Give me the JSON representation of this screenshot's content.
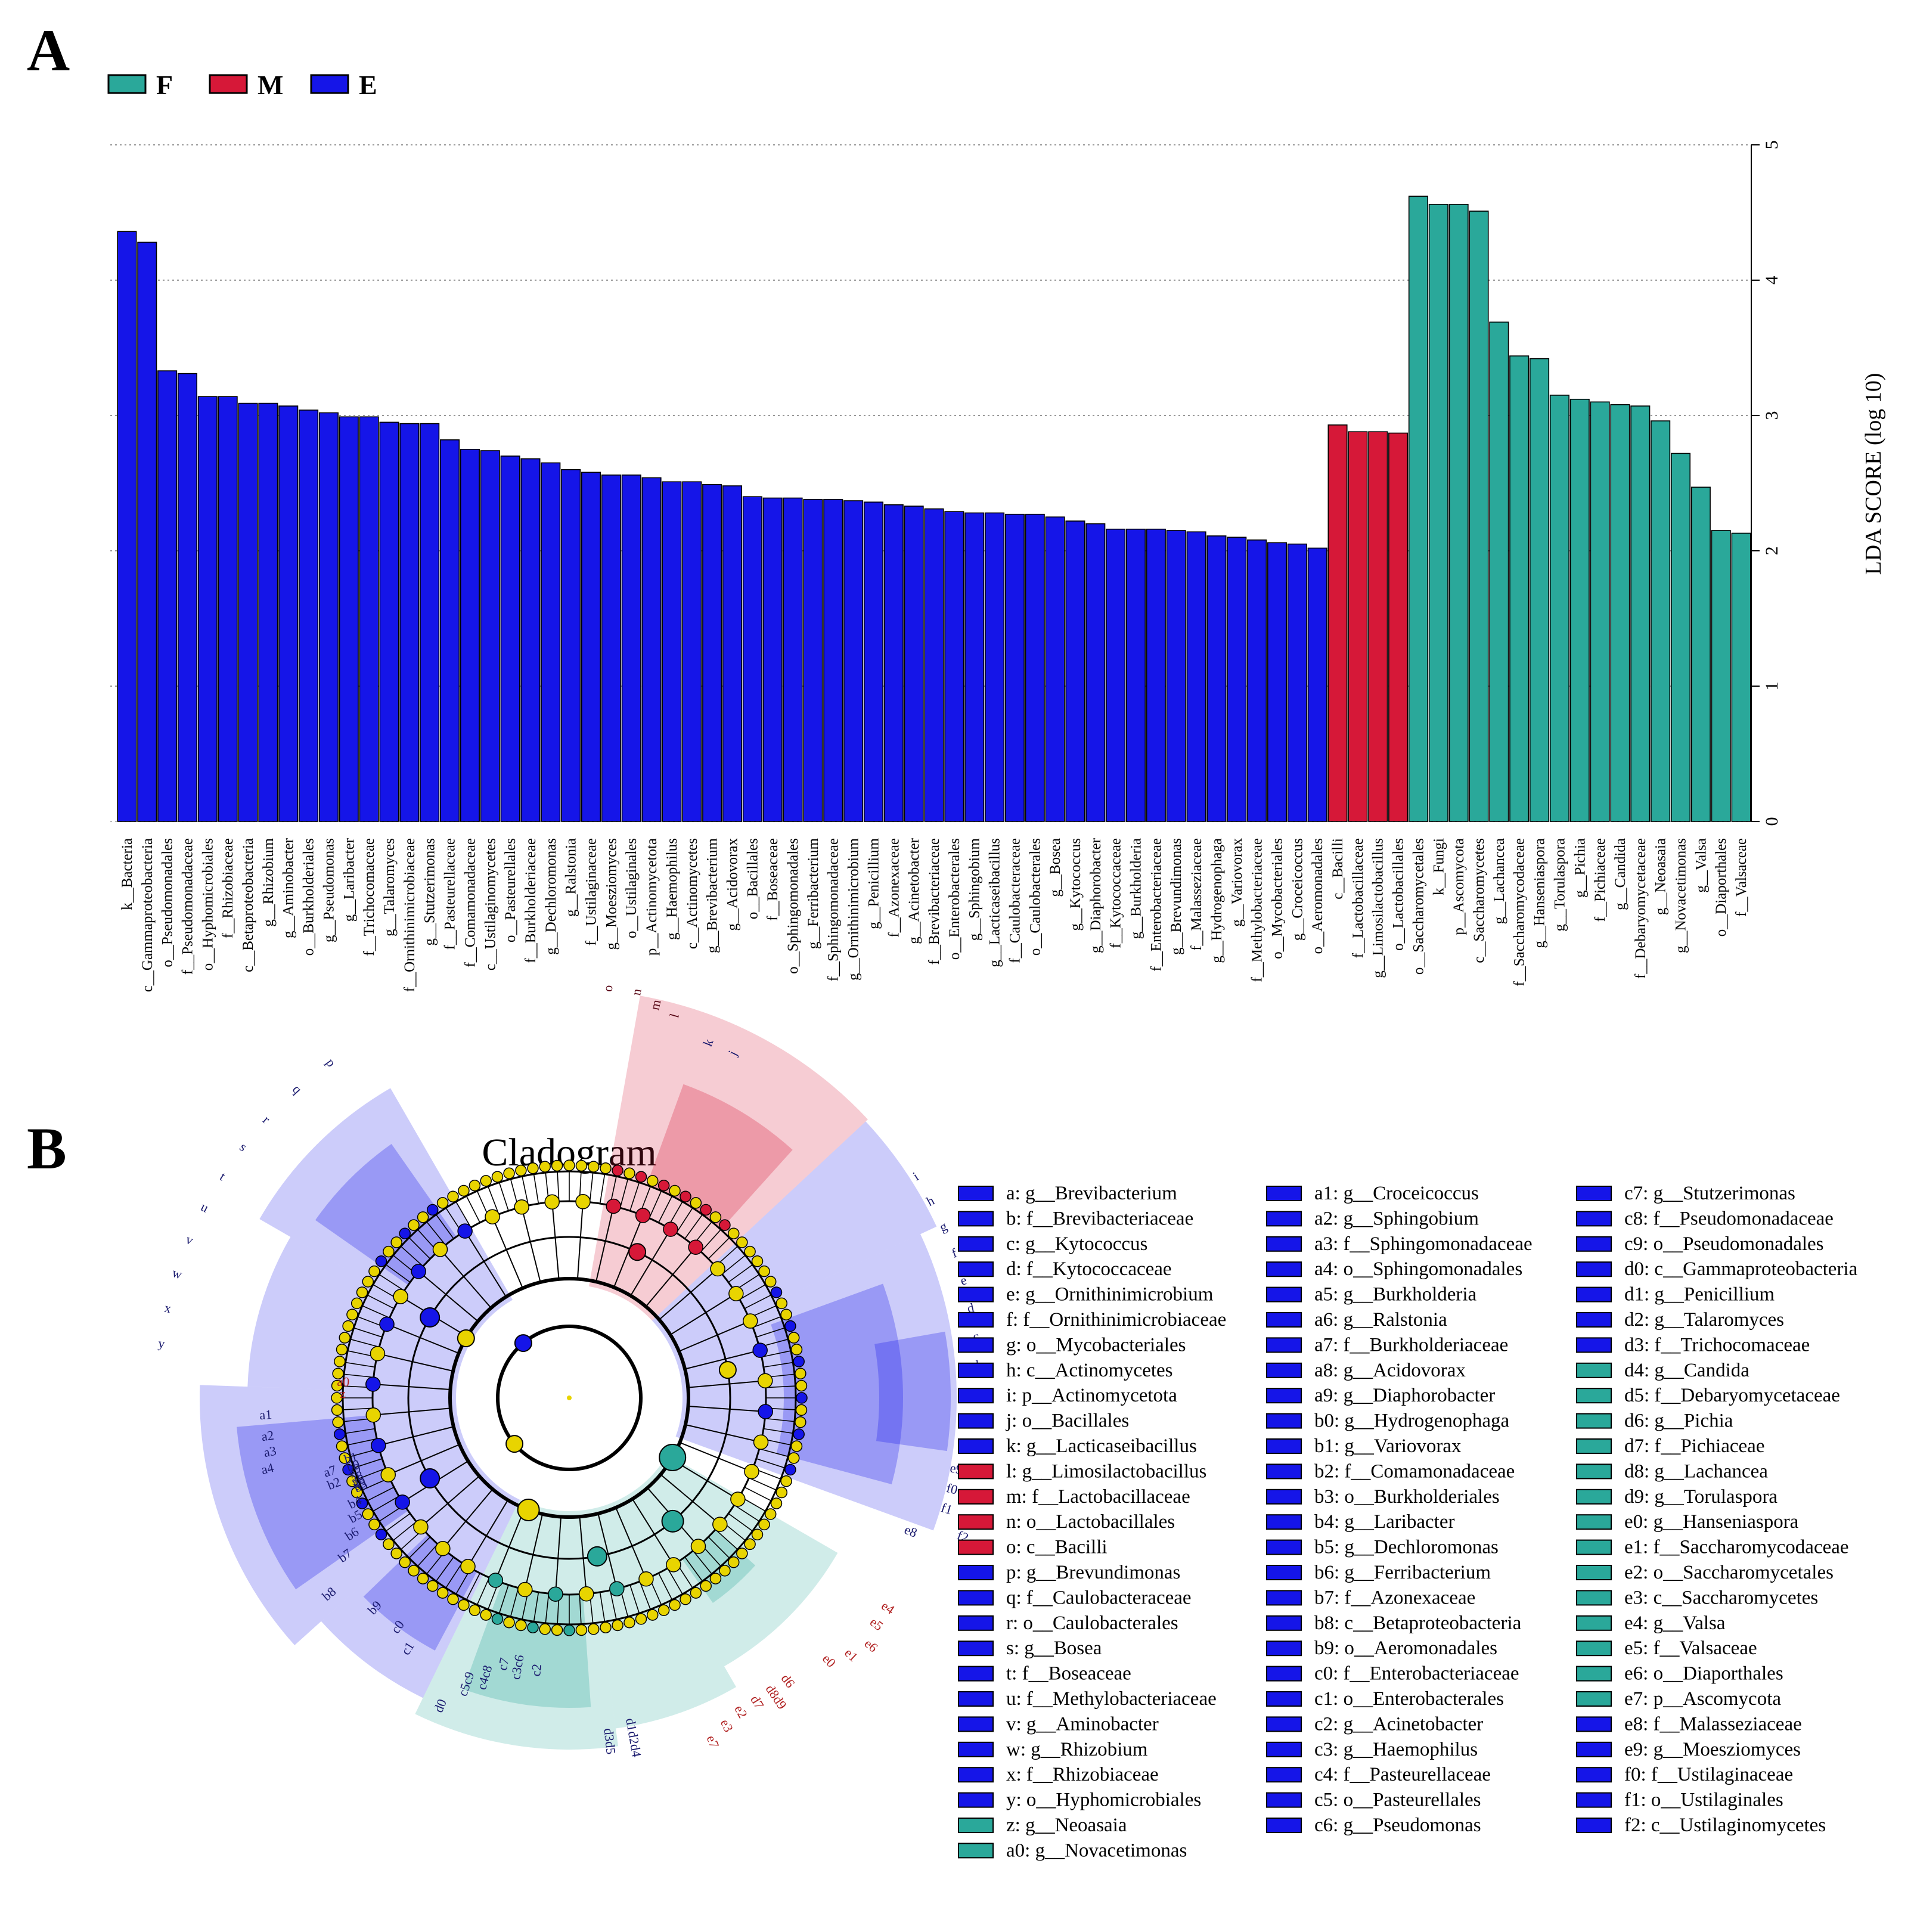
{
  "panel_a_label": "A",
  "panel_b_label": "B",
  "colors": {
    "F": "#2aa89a",
    "M": "#d61838",
    "E": "#1515e8",
    "node": "#e8d400"
  },
  "chart_data": {
    "type": "bar",
    "ylabel": "LDA SCORE (log 10)",
    "ylim": [
      0,
      5
    ],
    "yticks": [
      0,
      1,
      2,
      3,
      4,
      5
    ],
    "grid": true,
    "legend": [
      {
        "key": "F",
        "label": "F"
      },
      {
        "key": "M",
        "label": "M"
      },
      {
        "key": "E",
        "label": "E"
      }
    ],
    "bars": [
      {
        "label": "k__Bacteria",
        "value": 4.36,
        "group": "E"
      },
      {
        "label": "c__Gammaproteobacteria",
        "value": 4.28,
        "group": "E"
      },
      {
        "label": "o__Pseudomonadales",
        "value": 3.33,
        "group": "E"
      },
      {
        "label": "f__Pseudomonadaceae",
        "value": 3.31,
        "group": "E"
      },
      {
        "label": "o__Hyphomicrobiales",
        "value": 3.14,
        "group": "E"
      },
      {
        "label": "f__Rhizobiaceae",
        "value": 3.14,
        "group": "E"
      },
      {
        "label": "c__Betaproteobacteria",
        "value": 3.09,
        "group": "E"
      },
      {
        "label": "g__Rhizobium",
        "value": 3.09,
        "group": "E"
      },
      {
        "label": "g__Aminobacter",
        "value": 3.07,
        "group": "E"
      },
      {
        "label": "o__Burkholderiales",
        "value": 3.04,
        "group": "E"
      },
      {
        "label": "g__Pseudomonas",
        "value": 3.02,
        "group": "E"
      },
      {
        "label": "g__Laribacter",
        "value": 2.99,
        "group": "E"
      },
      {
        "label": "f__Trichocomaceae",
        "value": 2.99,
        "group": "E"
      },
      {
        "label": "g__Talaromyces",
        "value": 2.95,
        "group": "E"
      },
      {
        "label": "f__Ornithinimicrobiaceae",
        "value": 2.94,
        "group": "E"
      },
      {
        "label": "g__Stutzerimonas",
        "value": 2.94,
        "group": "E"
      },
      {
        "label": "f__Pasteurellaceae",
        "value": 2.82,
        "group": "E"
      },
      {
        "label": "f__Comamonadaceae",
        "value": 2.75,
        "group": "E"
      },
      {
        "label": "c__Ustilaginomycetes",
        "value": 2.74,
        "group": "E"
      },
      {
        "label": "o__Pasteurellales",
        "value": 2.7,
        "group": "E"
      },
      {
        "label": "f__Burkholderiaceae",
        "value": 2.68,
        "group": "E"
      },
      {
        "label": "g__Dechloromonas",
        "value": 2.65,
        "group": "E"
      },
      {
        "label": "g__Ralstonia",
        "value": 2.6,
        "group": "E"
      },
      {
        "label": "f__Ustilaginaceae",
        "value": 2.58,
        "group": "E"
      },
      {
        "label": "g__Moesziomyces",
        "value": 2.56,
        "group": "E"
      },
      {
        "label": "o__Ustilaginales",
        "value": 2.56,
        "group": "E"
      },
      {
        "label": "p__Actinomycetota",
        "value": 2.54,
        "group": "E"
      },
      {
        "label": "g__Haemophilus",
        "value": 2.51,
        "group": "E"
      },
      {
        "label": "c__Actinomycetes",
        "value": 2.51,
        "group": "E"
      },
      {
        "label": "g__Brevibacterium",
        "value": 2.49,
        "group": "E"
      },
      {
        "label": "g__Acidovorax",
        "value": 2.48,
        "group": "E"
      },
      {
        "label": "o__Bacillales",
        "value": 2.4,
        "group": "E"
      },
      {
        "label": "f__Boseaceae",
        "value": 2.39,
        "group": "E"
      },
      {
        "label": "o__Sphingomonadales",
        "value": 2.39,
        "group": "E"
      },
      {
        "label": "g__Ferribacterium",
        "value": 2.38,
        "group": "E"
      },
      {
        "label": "f__Sphingomonadaceae",
        "value": 2.38,
        "group": "E"
      },
      {
        "label": "g__Ornithinimicrobium",
        "value": 2.37,
        "group": "E"
      },
      {
        "label": "g__Penicillium",
        "value": 2.36,
        "group": "E"
      },
      {
        "label": "f__Azonexaceae",
        "value": 2.34,
        "group": "E"
      },
      {
        "label": "g__Acinetobacter",
        "value": 2.33,
        "group": "E"
      },
      {
        "label": "f__Brevibacteriaceae",
        "value": 2.31,
        "group": "E"
      },
      {
        "label": "o__Enterobacterales",
        "value": 2.29,
        "group": "E"
      },
      {
        "label": "g__Sphingobium",
        "value": 2.28,
        "group": "E"
      },
      {
        "label": "g__Lacticaseibacillus",
        "value": 2.28,
        "group": "E"
      },
      {
        "label": "f__Caulobacteraceae",
        "value": 2.27,
        "group": "E"
      },
      {
        "label": "o__Caulobacterales",
        "value": 2.27,
        "group": "E"
      },
      {
        "label": "g__Bosea",
        "value": 2.25,
        "group": "E"
      },
      {
        "label": "g__Kytococcus",
        "value": 2.22,
        "group": "E"
      },
      {
        "label": "g__Diaphorobacter",
        "value": 2.2,
        "group": "E"
      },
      {
        "label": "f__Kytococcaceae",
        "value": 2.16,
        "group": "E"
      },
      {
        "label": "g__Burkholderia",
        "value": 2.16,
        "group": "E"
      },
      {
        "label": "f__Enterobacteriaceae",
        "value": 2.16,
        "group": "E"
      },
      {
        "label": "g__Brevundimonas",
        "value": 2.15,
        "group": "E"
      },
      {
        "label": "f__Malasseziaceae",
        "value": 2.14,
        "group": "E"
      },
      {
        "label": "g__Hydrogenophaga",
        "value": 2.11,
        "group": "E"
      },
      {
        "label": "g__Variovorax",
        "value": 2.1,
        "group": "E"
      },
      {
        "label": "f__Methylobacteriaceae",
        "value": 2.08,
        "group": "E"
      },
      {
        "label": "o__Mycobacteriales",
        "value": 2.06,
        "group": "E"
      },
      {
        "label": "g__Croceicoccus",
        "value": 2.05,
        "group": "E"
      },
      {
        "label": "o__Aeromonadales",
        "value": 2.02,
        "group": "E"
      },
      {
        "label": "c__Bacilli",
        "value": 2.93,
        "group": "M"
      },
      {
        "label": "f__Lactobacillaceae",
        "value": 2.88,
        "group": "M"
      },
      {
        "label": "g__Limosilactobacillus",
        "value": 2.88,
        "group": "M"
      },
      {
        "label": "o__Lactobacillales",
        "value": 2.87,
        "group": "M"
      },
      {
        "label": "o__Saccharomycetales",
        "value": 4.62,
        "group": "F"
      },
      {
        "label": "k__Fungi",
        "value": 4.56,
        "group": "F"
      },
      {
        "label": "p__Ascomycota",
        "value": 4.56,
        "group": "F"
      },
      {
        "label": "c__Saccharomycetes",
        "value": 4.51,
        "group": "F"
      },
      {
        "label": "g__Lachancea",
        "value": 3.69,
        "group": "F"
      },
      {
        "label": "f__Saccharomycodaceae",
        "value": 3.44,
        "group": "F"
      },
      {
        "label": "g__Hanseniaspora",
        "value": 3.42,
        "group": "F"
      },
      {
        "label": "g__Torulaspora",
        "value": 3.15,
        "group": "F"
      },
      {
        "label": "g__Pichia",
        "value": 3.12,
        "group": "F"
      },
      {
        "label": "f__Pichiaceae",
        "value": 3.1,
        "group": "F"
      },
      {
        "label": "g__Candida",
        "value": 3.08,
        "group": "F"
      },
      {
        "label": "f__Debaryomycetaceae",
        "value": 3.07,
        "group": "F"
      },
      {
        "label": "g__Neoasaia",
        "value": 2.96,
        "group": "F"
      },
      {
        "label": "g__Novacetimonas",
        "value": 2.72,
        "group": "F"
      },
      {
        "label": "g__Valsa",
        "value": 2.47,
        "group": "F"
      },
      {
        "label": "o__Diaporthales",
        "value": 2.15,
        "group": "F"
      },
      {
        "label": "f__Valsaceae",
        "value": 2.13,
        "group": "F"
      }
    ]
  },
  "cladogram": {
    "title": "Cladogram",
    "legend_columns": [
      [
        {
          "label": "a: g__Brevibacterium",
          "group": "E"
        },
        {
          "label": "b: f__Brevibacteriaceae",
          "group": "E"
        },
        {
          "label": "c: g__Kytococcus",
          "group": "E"
        },
        {
          "label": "d: f__Kytococcaceae",
          "group": "E"
        },
        {
          "label": "e: g__Ornithinimicrobium",
          "group": "E"
        },
        {
          "label": "f: f__Ornithinimicrobiaceae",
          "group": "E"
        },
        {
          "label": "g: o__Mycobacteriales",
          "group": "E"
        },
        {
          "label": "h: c__Actinomycetes",
          "group": "E"
        },
        {
          "label": "i: p__Actinomycetota",
          "group": "E"
        },
        {
          "label": "j: o__Bacillales",
          "group": "E"
        },
        {
          "label": "k: g__Lacticaseibacillus",
          "group": "E"
        },
        {
          "label": "l: g__Limosilactobacillus",
          "group": "M"
        },
        {
          "label": "m: f__Lactobacillaceae",
          "group": "M"
        },
        {
          "label": "n: o__Lactobacillales",
          "group": "M"
        },
        {
          "label": "o: c__Bacilli",
          "group": "M"
        },
        {
          "label": "p: g__Brevundimonas",
          "group": "E"
        },
        {
          "label": "q: f__Caulobacteraceae",
          "group": "E"
        },
        {
          "label": "r: o__Caulobacterales",
          "group": "E"
        },
        {
          "label": "s: g__Bosea",
          "group": "E"
        },
        {
          "label": "t: f__Boseaceae",
          "group": "E"
        },
        {
          "label": "u: f__Methylobacteriaceae",
          "group": "E"
        },
        {
          "label": "v: g__Aminobacter",
          "group": "E"
        },
        {
          "label": "w: g__Rhizobium",
          "group": "E"
        },
        {
          "label": "x: f__Rhizobiaceae",
          "group": "E"
        },
        {
          "label": "y: o__Hyphomicrobiales",
          "group": "E"
        },
        {
          "label": "z: g__Neoasaia",
          "group": "F"
        },
        {
          "label": "a0: g__Novacetimonas",
          "group": "F"
        }
      ],
      [
        {
          "label": "a1: g__Croceicoccus",
          "group": "E"
        },
        {
          "label": "a2: g__Sphingobium",
          "group": "E"
        },
        {
          "label": "a3: f__Sphingomonadaceae",
          "group": "E"
        },
        {
          "label": "a4: o__Sphingomonadales",
          "group": "E"
        },
        {
          "label": "a5: g__Burkholderia",
          "group": "E"
        },
        {
          "label": "a6: g__Ralstonia",
          "group": "E"
        },
        {
          "label": "a7: f__Burkholderiaceae",
          "group": "E"
        },
        {
          "label": "a8: g__Acidovorax",
          "group": "E"
        },
        {
          "label": "a9: g__Diaphorobacter",
          "group": "E"
        },
        {
          "label": "b0: g__Hydrogenophaga",
          "group": "E"
        },
        {
          "label": "b1: g__Variovorax",
          "group": "E"
        },
        {
          "label": "b2: f__Comamonadaceae",
          "group": "E"
        },
        {
          "label": "b3: o__Burkholderiales",
          "group": "E"
        },
        {
          "label": "b4: g__Laribacter",
          "group": "E"
        },
        {
          "label": "b5: g__Dechloromonas",
          "group": "E"
        },
        {
          "label": "b6: g__Ferribacterium",
          "group": "E"
        },
        {
          "label": "b7: f__Azonexaceae",
          "group": "E"
        },
        {
          "label": "b8: c__Betaproteobacteria",
          "group": "E"
        },
        {
          "label": "b9: o__Aeromonadales",
          "group": "E"
        },
        {
          "label": "c0: f__Enterobacteriaceae",
          "group": "E"
        },
        {
          "label": "c1: o__Enterobacterales",
          "group": "E"
        },
        {
          "label": "c2: g__Acinetobacter",
          "group": "E"
        },
        {
          "label": "c3: g__Haemophilus",
          "group": "E"
        },
        {
          "label": "c4: f__Pasteurellaceae",
          "group": "E"
        },
        {
          "label": "c5: o__Pasteurellales",
          "group": "E"
        },
        {
          "label": "c6: g__Pseudomonas",
          "group": "E"
        }
      ],
      [
        {
          "label": "c7: g__Stutzerimonas",
          "group": "E"
        },
        {
          "label": "c8: f__Pseudomonadaceae",
          "group": "E"
        },
        {
          "label": "c9: o__Pseudomonadales",
          "group": "E"
        },
        {
          "label": "d0: c__Gammaproteobacteria",
          "group": "E"
        },
        {
          "label": "d1: g__Penicillium",
          "group": "E"
        },
        {
          "label": "d2: g__Talaromyces",
          "group": "E"
        },
        {
          "label": "d3: f__Trichocomaceae",
          "group": "E"
        },
        {
          "label": "d4: g__Candida",
          "group": "F"
        },
        {
          "label": "d5: f__Debaryomycetaceae",
          "group": "F"
        },
        {
          "label": "d6: g__Pichia",
          "group": "F"
        },
        {
          "label": "d7: f__Pichiaceae",
          "group": "F"
        },
        {
          "label": "d8: g__Lachancea",
          "group": "F"
        },
        {
          "label": "d9: g__Torulaspora",
          "group": "F"
        },
        {
          "label": "e0: g__Hanseniaspora",
          "group": "F"
        },
        {
          "label": "e1: f__Saccharomycodaceae",
          "group": "F"
        },
        {
          "label": "e2: o__Saccharomycetales",
          "group": "F"
        },
        {
          "label": "e3: c__Saccharomycetes",
          "group": "F"
        },
        {
          "label": "e4: g__Valsa",
          "group": "F"
        },
        {
          "label": "e5: f__Valsaceae",
          "group": "F"
        },
        {
          "label": "e6: o__Diaporthales",
          "group": "F"
        },
        {
          "label": "e7: p__Ascomycota",
          "group": "F"
        },
        {
          "label": "e8: f__Malasseziaceae",
          "group": "E"
        },
        {
          "label": "e9: g__Moesziomyces",
          "group": "E"
        },
        {
          "label": "f0: f__Ustilaginaceae",
          "group": "E"
        },
        {
          "label": "f1: o__Ustilaginales",
          "group": "E"
        },
        {
          "label": "f2: c__Ustilaginomycetes",
          "group": "E"
        }
      ]
    ],
    "labels": [
      {
        "t": "o",
        "g": "M"
      },
      {
        "t": "n",
        "g": "M"
      },
      {
        "t": "m",
        "g": "M"
      },
      {
        "t": "l",
        "g": "M"
      },
      {
        "t": "k",
        "g": "E"
      },
      {
        "t": "j",
        "g": "E"
      },
      {
        "t": "i",
        "g": "E"
      },
      {
        "t": "h",
        "g": "E"
      },
      {
        "t": "g",
        "g": "E"
      },
      {
        "t": "f",
        "g": "E"
      },
      {
        "t": "e",
        "g": "E"
      },
      {
        "t": "d",
        "g": "E"
      },
      {
        "t": "c",
        "g": "E"
      },
      {
        "t": "b",
        "g": "E"
      },
      {
        "t": "a",
        "g": "E"
      },
      {
        "t": "e9",
        "g": "E"
      },
      {
        "t": "f0",
        "g": "E"
      },
      {
        "t": "f1",
        "g": "E"
      },
      {
        "t": "f2",
        "g": "E"
      },
      {
        "t": "e8",
        "g": "E"
      },
      {
        "t": "e4",
        "g": "F"
      },
      {
        "t": "e5",
        "g": "F"
      },
      {
        "t": "e6",
        "g": "F"
      },
      {
        "t": "e1",
        "g": "F"
      },
      {
        "t": "e0",
        "g": "F"
      },
      {
        "t": "d6",
        "g": "F"
      },
      {
        "t": "d8d9",
        "g": "F"
      },
      {
        "t": "d7",
        "g": "F"
      },
      {
        "t": "e2",
        "g": "F"
      },
      {
        "t": "e3",
        "g": "F"
      },
      {
        "t": "e7",
        "g": "F"
      },
      {
        "t": "d1d2d4",
        "g": "E"
      },
      {
        "t": "d3d5",
        "g": "E"
      },
      {
        "t": "c2",
        "g": "E"
      },
      {
        "t": "c3c6",
        "g": "E"
      },
      {
        "t": "c7",
        "g": "E"
      },
      {
        "t": "c4c8",
        "g": "E"
      },
      {
        "t": "c5c9",
        "g": "E"
      },
      {
        "t": "d0",
        "g": "E"
      },
      {
        "t": "c1",
        "g": "E"
      },
      {
        "t": "c0",
        "g": "E"
      },
      {
        "t": "b9",
        "g": "E"
      },
      {
        "t": "b8",
        "g": "E"
      },
      {
        "t": "b7",
        "g": "E"
      },
      {
        "t": "b6",
        "g": "E"
      },
      {
        "t": "b5",
        "g": "E"
      },
      {
        "t": "b4",
        "g": "E"
      },
      {
        "t": "b3",
        "g": "E"
      },
      {
        "t": "b2",
        "g": "E"
      },
      {
        "t": "a7",
        "g": "E"
      },
      {
        "t": "a4",
        "g": "E"
      },
      {
        "t": "a3",
        "g": "E"
      },
      {
        "t": "a2",
        "g": "E"
      },
      {
        "t": "a1",
        "g": "E"
      },
      {
        "t": "z",
        "g": "F"
      },
      {
        "t": "a0",
        "g": "F"
      },
      {
        "t": "y",
        "g": "E"
      },
      {
        "t": "x",
        "g": "E"
      },
      {
        "t": "w",
        "g": "E"
      },
      {
        "t": "v",
        "g": "E"
      },
      {
        "t": "u",
        "g": "E"
      },
      {
        "t": "t",
        "g": "E"
      },
      {
        "t": "s",
        "g": "E"
      },
      {
        "t": "r",
        "g": "E"
      },
      {
        "t": "q",
        "g": "E"
      },
      {
        "t": "p",
        "g": "E"
      },
      {
        "t": "a5",
        "g": "E"
      },
      {
        "t": "a6",
        "g": "E"
      },
      {
        "t": "a8",
        "g": "E"
      },
      {
        "t": "a9",
        "g": "E"
      },
      {
        "t": "b0",
        "g": "E"
      },
      {
        "t": "b1",
        "g": "E"
      }
    ]
  }
}
